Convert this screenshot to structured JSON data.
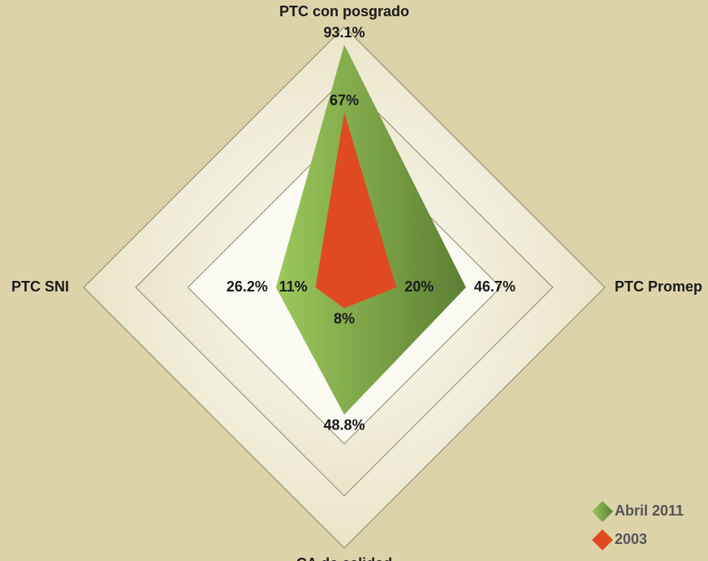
{
  "chart_data": {
    "type": "radar",
    "axes": [
      "PTC con posgrado",
      "PTC Promep",
      "CA de calidad",
      "PTC SNI"
    ],
    "series": [
      {
        "name": "Abril 2011",
        "color": "#7aa845",
        "values": [
          93.1,
          46.7,
          48.8,
          26.2
        ],
        "value_labels": [
          "93.1%",
          "46.7%",
          "48.8%",
          "26.2%"
        ]
      },
      {
        "name": "2003",
        "color": "#e04a22",
        "values": [
          67,
          20,
          8,
          11
        ],
        "value_labels": [
          "67%",
          "20%",
          "8%",
          "11%"
        ]
      }
    ],
    "rlim": [
      0,
      100
    ],
    "rticks": [
      60,
      80,
      100
    ],
    "grid": true,
    "legend": "lower right"
  }
}
